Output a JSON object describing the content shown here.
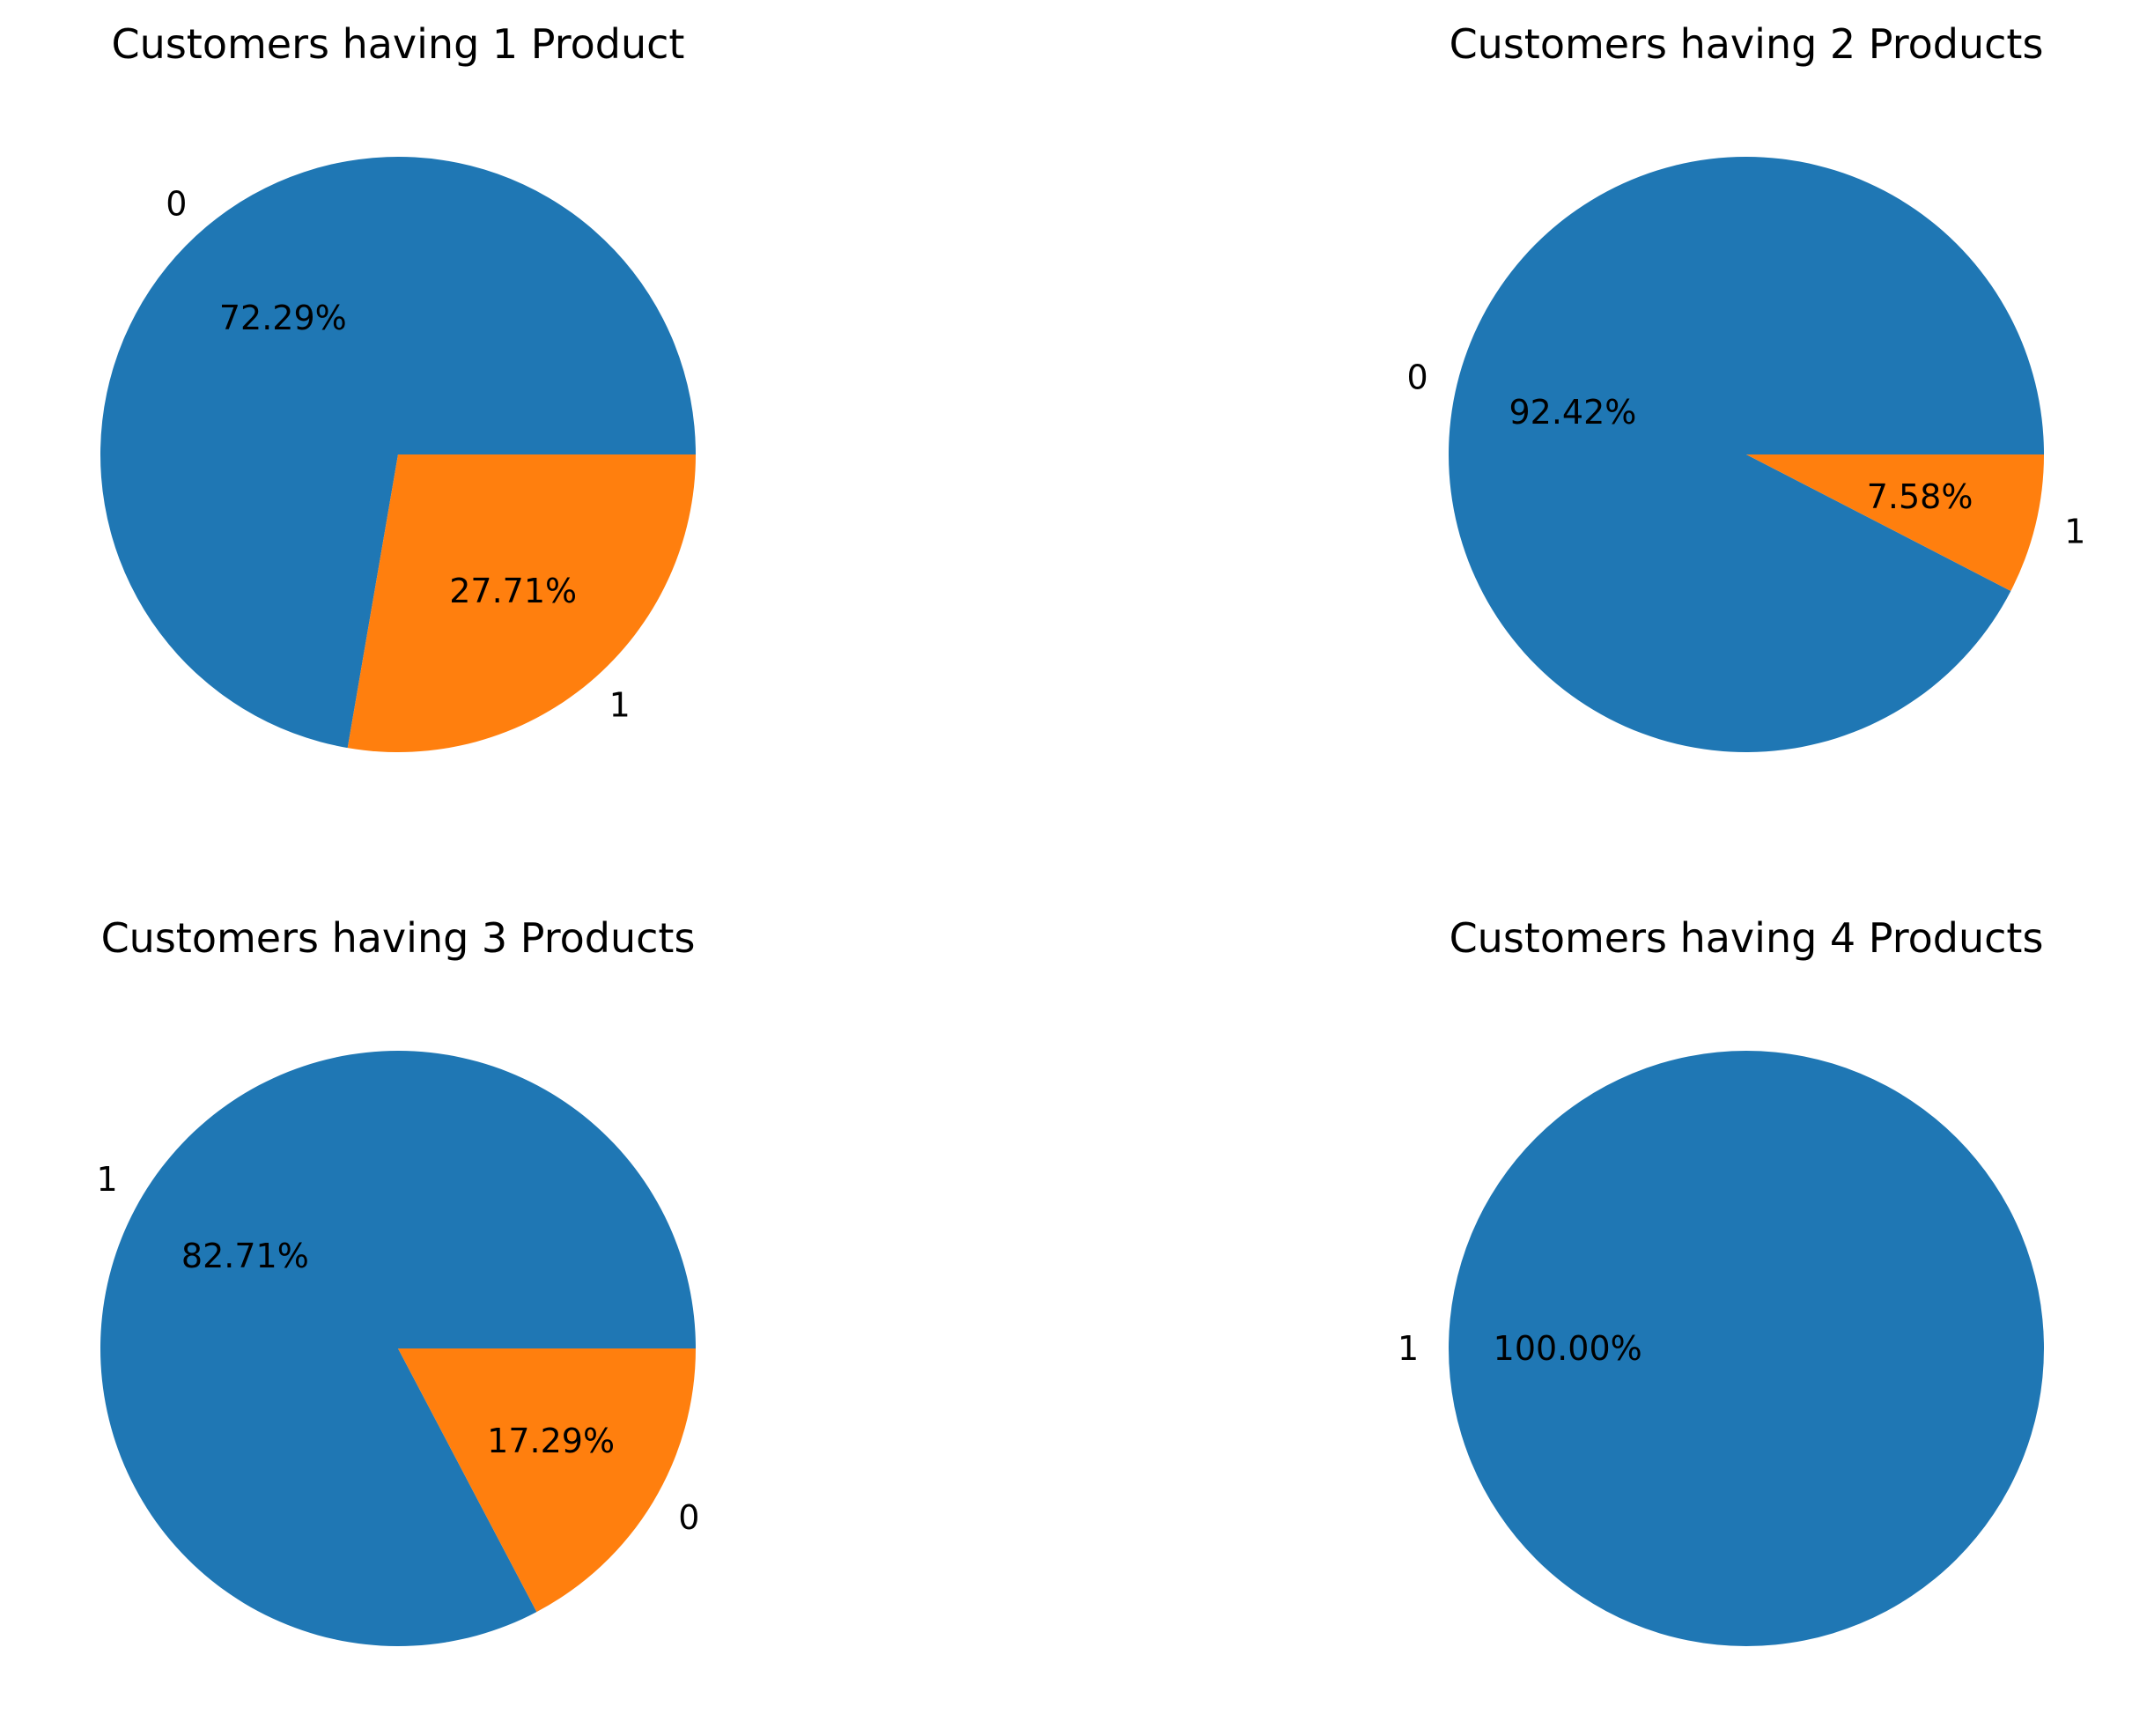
{
  "chart_data": [
    {
      "type": "pie",
      "title": "Customers having 1 Product",
      "slices": [
        {
          "label": "0",
          "value": 72.29,
          "pct_text": "72.29%",
          "color": "#1f77b4"
        },
        {
          "label": "1",
          "value": 27.71,
          "pct_text": "27.71%",
          "color": "#ff7f0e"
        }
      ]
    },
    {
      "type": "pie",
      "title": "Customers having 2 Products",
      "slices": [
        {
          "label": "0",
          "value": 92.42,
          "pct_text": "92.42%",
          "color": "#1f77b4"
        },
        {
          "label": "1",
          "value": 7.58,
          "pct_text": "7.58%",
          "color": "#ff7f0e"
        }
      ]
    },
    {
      "type": "pie",
      "title": "Customers having 3 Products",
      "slices": [
        {
          "label": "1",
          "value": 82.71,
          "pct_text": "82.71%",
          "color": "#1f77b4"
        },
        {
          "label": "0",
          "value": 17.29,
          "pct_text": "17.29%",
          "color": "#ff7f0e"
        }
      ]
    },
    {
      "type": "pie",
      "title": "Customers having 4 Products",
      "slices": [
        {
          "label": "1",
          "value": 100.0,
          "pct_text": "100.00%",
          "color": "#1f77b4"
        }
      ]
    }
  ]
}
